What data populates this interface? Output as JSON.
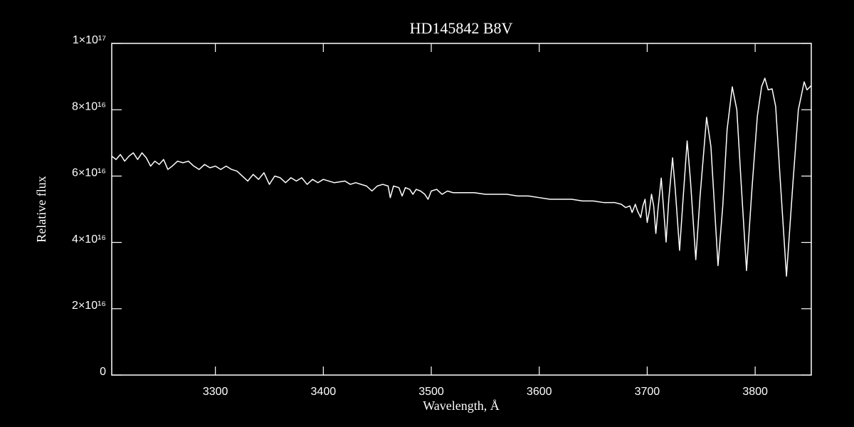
{
  "chart_data": {
    "type": "line",
    "title": "HD145842   B8V",
    "xlabel": "Wavelength, Å",
    "ylabel": "Relative flux",
    "color": "#ffffff",
    "xlim": [
      3204,
      3852
    ],
    "xticks": [
      3300,
      3400,
      3500,
      3600,
      3700,
      3800
    ],
    "ylim": [
      0,
      1e+17
    ],
    "yticks": [
      0,
      {
        "value": 2e+16,
        "label": "2×10¹⁶"
      },
      {
        "value": 4e+16,
        "label": "4×10¹⁶"
      },
      {
        "value": 6e+16,
        "label": "6×10¹⁶"
      },
      {
        "value": 8e+16,
        "label": "8×10¹⁶"
      },
      {
        "value": 1e+17,
        "label": "1×10¹⁷"
      }
    ],
    "x": [
      3204,
      3208,
      3212,
      3216,
      3220,
      3224,
      3228,
      3232,
      3236,
      3240,
      3244,
      3248,
      3252,
      3256,
      3260,
      3265,
      3270,
      3275,
      3280,
      3285,
      3290,
      3295,
      3300,
      3305,
      3310,
      3315,
      3320,
      3325,
      3330,
      3335,
      3340,
      3345,
      3350,
      3355,
      3360,
      3365,
      3370,
      3375,
      3380,
      3385,
      3390,
      3395,
      3400,
      3410,
      3420,
      3425,
      3430,
      3440,
      3445,
      3450,
      3455,
      3460,
      3462,
      3465,
      3470,
      3473,
      3476,
      3480,
      3483,
      3486,
      3490,
      3494,
      3497,
      3500,
      3505,
      3510,
      3515,
      3520,
      3530,
      3540,
      3550,
      3560,
      3570,
      3580,
      3590,
      3600,
      3610,
      3620,
      3630,
      3640,
      3650,
      3660,
      3670,
      3676,
      3680,
      3684,
      3686,
      3689,
      3691,
      3694,
      3696,
      3698,
      3700,
      3702,
      3704,
      3706,
      3708,
      3710,
      3713,
      3715,
      3717.5,
      3720,
      3723.5,
      3726,
      3730,
      3733,
      3737,
      3740,
      3745,
      3749,
      3755,
      3759,
      3765.6,
      3770,
      3774,
      3778.8,
      3783,
      3787,
      3792,
      3797,
      3802,
      3806,
      3809,
      3812,
      3815.7,
      3819,
      3823,
      3829,
      3835,
      3840,
      3845.4,
      3848,
      3852
    ],
    "values": [
      6.6e+16,
      6.5e+16,
      6.65e+16,
      6.45e+16,
      6.6e+16,
      6.7e+16,
      6.5e+16,
      6.7e+16,
      6.55e+16,
      6.3e+16,
      6.45e+16,
      6.35e+16,
      6.5e+16,
      6.2e+16,
      6.3e+16,
      6.45e+16,
      6.4e+16,
      6.45e+16,
      6.3e+16,
      6.2e+16,
      6.35e+16,
      6.25e+16,
      6.3e+16,
      6.2e+16,
      6.3e+16,
      6.2e+16,
      6.15e+16,
      6e+16,
      5.85e+16,
      6.05e+16,
      5.9e+16,
      6.1e+16,
      5.75e+16,
      6e+16,
      5.95e+16,
      5.8e+16,
      5.95e+16,
      5.85e+16,
      5.95e+16,
      5.75e+16,
      5.9e+16,
      5.8e+16,
      5.9e+16,
      5.8e+16,
      5.85e+16,
      5.75e+16,
      5.8e+16,
      5.7e+16,
      5.55e+16,
      5.7e+16,
      5.75e+16,
      5.7e+16,
      5.35e+16,
      5.7e+16,
      5.65e+16,
      5.4e+16,
      5.65e+16,
      5.6e+16,
      5.45e+16,
      5.6e+16,
      5.55e+16,
      5.45e+16,
      5.3e+16,
      5.55e+16,
      5.6e+16,
      5.45e+16,
      5.55e+16,
      5.5e+16,
      5.5e+16,
      5.5e+16,
      5.45e+16,
      5.45e+16,
      5.45e+16,
      5.4e+16,
      5.4e+16,
      5.35e+16,
      5.3e+16,
      5.3e+16,
      5.3e+16,
      5.25e+16,
      5.25e+16,
      5.2e+16,
      5.2e+16,
      5.15e+16,
      5.05e+16,
      5.1e+16,
      4.9e+16,
      5.15e+16,
      4.95e+16,
      4.75e+16,
      5.1e+16,
      5.3e+16,
      4.6e+16,
      4.95e+16,
      5.45e+16,
      5.1e+16,
      4.27e+16,
      5e+16,
      5.94e+16,
      5.1e+16,
      4.01e+16,
      5.3e+16,
      6.55e+16,
      5.6e+16,
      3.76e+16,
      5.2e+16,
      7.06e+16,
      5.9e+16,
      3.48e+16,
      5.4e+16,
      7.77e+16,
      6.9e+16,
      3.3e+16,
      5.1e+16,
      7.4e+16,
      8.69e+16,
      8e+16,
      5.8e+16,
      3.15e+16,
      5.6e+16,
      7.8e+16,
      8.7e+16,
      8.95e+16,
      8.6e+16,
      8.63e+16,
      8.1e+16,
      6e+16,
      2.98e+16,
      5.8e+16,
      8e+16,
      8.84e+16,
      8.6e+16,
      8.73e+16
    ]
  }
}
